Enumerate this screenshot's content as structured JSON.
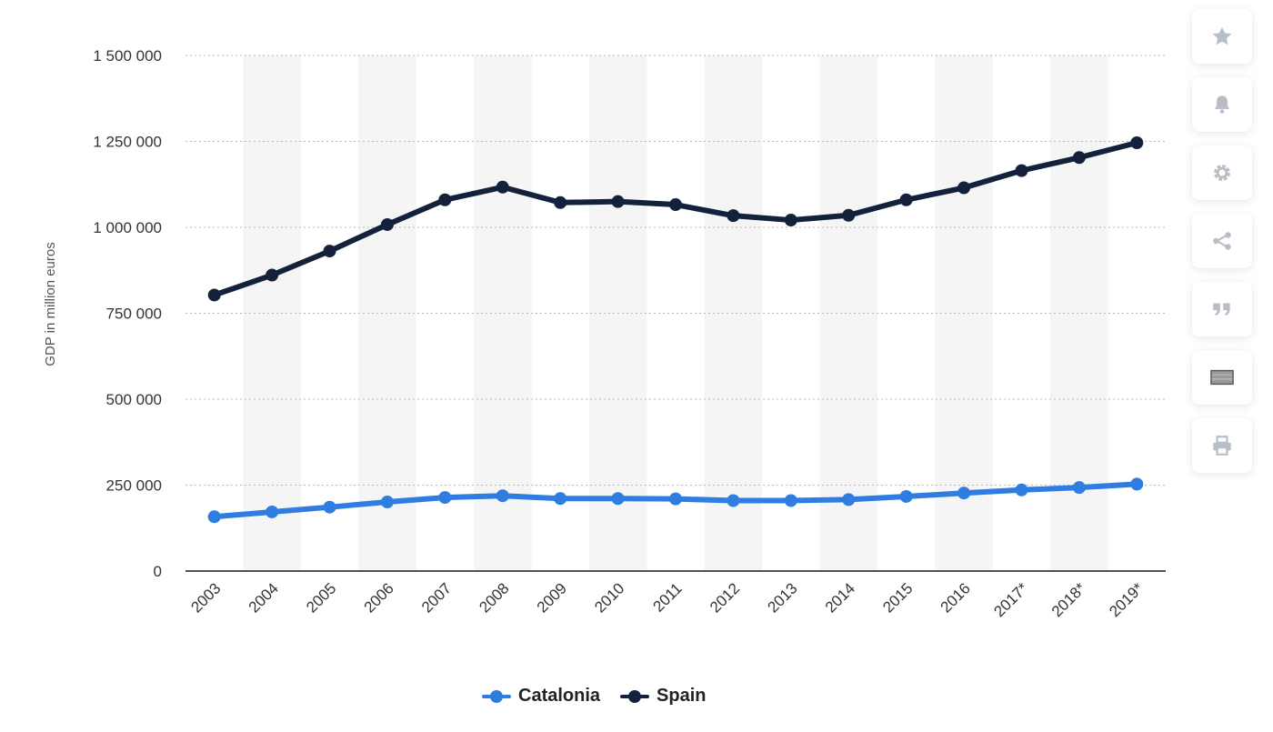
{
  "chart_data": {
    "type": "line",
    "categories": [
      "2003",
      "2004",
      "2005",
      "2006",
      "2007",
      "2008",
      "2009",
      "2010",
      "2011",
      "2012",
      "2013",
      "2014",
      "2015",
      "2016",
      "2017*",
      "2018*",
      "2019*"
    ],
    "series": [
      {
        "name": "Catalonia",
        "color": "#2f7de1",
        "values": [
          158000,
          172000,
          186000,
          201000,
          214000,
          219000,
          211000,
          211000,
          210000,
          205000,
          205000,
          208000,
          217000,
          227000,
          236000,
          243000,
          253000
        ]
      },
      {
        "name": "Spain",
        "color": "#14213a",
        "values": [
          803000,
          861000,
          931000,
          1008000,
          1080000,
          1117000,
          1072000,
          1075000,
          1066000,
          1034000,
          1021000,
          1035000,
          1080000,
          1115000,
          1165000,
          1203000,
          1246000
        ]
      }
    ],
    "ylabel": "GDP in million euros",
    "ylim": [
      0,
      1500000
    ],
    "yticks": [
      0,
      250000,
      500000,
      750000,
      1000000,
      1250000,
      1500000
    ],
    "ytick_labels": [
      "0",
      "250 000",
      "500 000",
      "750 000",
      "1 000 000",
      "1 250 000",
      "1 500 000"
    ],
    "grid": true,
    "legend_position": "bottom-center"
  },
  "legend": {
    "items": [
      {
        "label": "Catalonia",
        "color": "#2f7de1"
      },
      {
        "label": "Spain",
        "color": "#14213a"
      }
    ]
  },
  "toolbar": {
    "buttons": [
      {
        "icon": "star-icon"
      },
      {
        "icon": "bell-icon"
      },
      {
        "icon": "gear-icon"
      },
      {
        "icon": "share-icon"
      },
      {
        "icon": "quote-icon"
      },
      {
        "icon": "image-icon"
      },
      {
        "icon": "print-icon"
      }
    ]
  }
}
